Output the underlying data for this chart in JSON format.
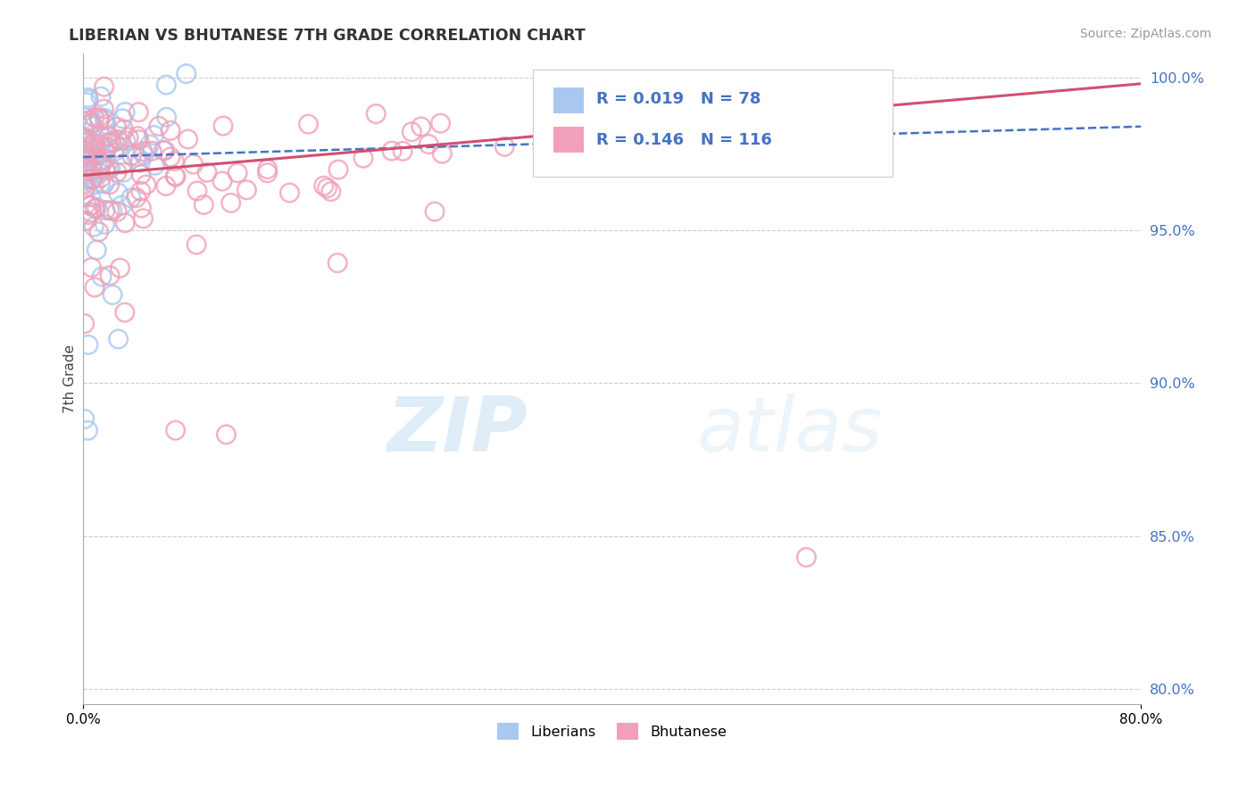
{
  "title": "LIBERIAN VS BHUTANESE 7TH GRADE CORRELATION CHART",
  "source_text": "Source: ZipAtlas.com",
  "ylabel": "7th Grade",
  "xlim": [
    0.0,
    0.8
  ],
  "ylim": [
    0.795,
    1.008
  ],
  "yticks": [
    0.8,
    0.85,
    0.9,
    0.95,
    1.0
  ],
  "ytick_labels": [
    "80.0%",
    "85.0%",
    "90.0%",
    "95.0%",
    "100.0%"
  ],
  "liberian_color": "#a8c8f0",
  "bhutanese_color": "#f0a0b8",
  "liberian_line_color": "#4472c4",
  "bhutanese_line_color": "#d05070",
  "R_liberian": 0.019,
  "N_liberian": 78,
  "R_bhutanese": 0.146,
  "N_bhutanese": 116,
  "watermark_zip": "ZIP",
  "watermark_atlas": "atlas",
  "legend_label_1": "Liberians",
  "legend_label_2": "Bhutanese",
  "lib_line_x0": 0.0,
  "lib_line_y0": 0.974,
  "lib_line_x1": 0.8,
  "lib_line_y1": 0.984,
  "bhu_line_x0": 0.0,
  "bhu_line_y0": 0.968,
  "bhu_line_x1": 0.8,
  "bhu_line_y1": 0.998
}
